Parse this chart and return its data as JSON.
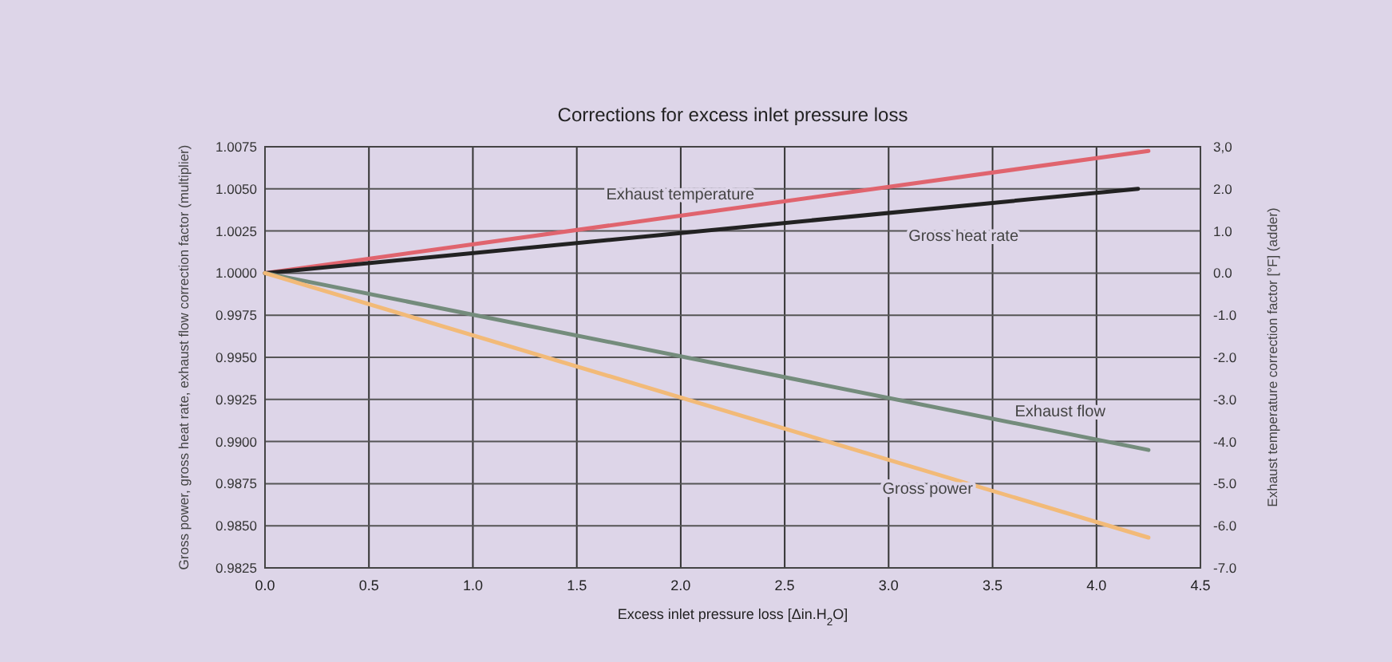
{
  "chart_data": {
    "type": "line",
    "title": "Corrections for excess inlet pressure loss",
    "xlabel": "Excess inlet pressure loss  [Δin.H$_{2}$O]",
    "ylabel": "Gross power, gross heat rate, exhaust flow correction factor (multiplier)",
    "y2label": "Exhaust temperature correction factor [°F] (adder)",
    "x": [
      0,
      4.25
    ],
    "series": [
      {
        "name": "Exhaust temperature",
        "color": "#e0646e",
        "values": [
          0,
          2.9
        ],
        "axis": "y2"
      },
      {
        "name": "Gross heat rate",
        "color": "#222222",
        "values": [
          1.0,
          1.005
        ],
        "x": [
          0,
          4.2
        ]
      },
      {
        "name": "Exhaust flow",
        "color": "#748c7c",
        "values": [
          1.0,
          0.9895
        ]
      },
      {
        "name": "Gross power",
        "color": "#f2ba78",
        "values": [
          1.0,
          0.9843
        ]
      }
    ],
    "xlim": [
      0,
      4.5
    ],
    "xticks": [
      {
        "value": 0,
        "label": "0.0"
      },
      {
        "value": 0.5,
        "label": "0.5"
      },
      {
        "value": 1,
        "label": "1.0"
      },
      {
        "value": 1.5,
        "label": "1.5"
      },
      {
        "value": 2,
        "label": "2.0"
      },
      {
        "value": 2.5,
        "label": "2.5"
      },
      {
        "value": 3,
        "label": "3.0"
      },
      {
        "value": 3.5,
        "label": "3.5"
      },
      {
        "value": 4,
        "label": "4.0"
      },
      {
        "value": 4.5,
        "label": "4.5"
      }
    ],
    "ylim": [
      0.9825,
      1.0075
    ],
    "yticks": [
      {
        "value": 0.9825,
        "label": "0.9825"
      },
      {
        "value": 0.985,
        "label": "0.9850"
      },
      {
        "value": 0.9875,
        "label": "0.9875"
      },
      {
        "value": 0.99,
        "label": "0.9900"
      },
      {
        "value": 0.9925,
        "label": "0.9925"
      },
      {
        "value": 0.995,
        "label": "0.9950"
      },
      {
        "value": 0.9975,
        "label": "0.9975"
      },
      {
        "value": 1,
        "label": "1.0000"
      },
      {
        "value": 1.0025,
        "label": "1.0025"
      },
      {
        "value": 1.005,
        "label": "1.0050"
      },
      {
        "value": 1.0075,
        "label": "1.0075"
      }
    ],
    "y2lim": [
      -7,
      3
    ],
    "y2ticks": [
      {
        "value": -7,
        "label": "-7.0"
      },
      {
        "value": -6,
        "label": "-6.0"
      },
      {
        "value": -5,
        "label": "-5.0"
      },
      {
        "value": -4,
        "label": "-4.0"
      },
      {
        "value": -3,
        "label": "-3.0"
      },
      {
        "value": -2,
        "label": "-2.0"
      },
      {
        "value": -1,
        "label": "-1.0"
      },
      {
        "value": 0,
        "label": "0.0"
      },
      {
        "value": 1,
        "label": "1.0"
      },
      {
        "value": 2,
        "label": "2.0"
      },
      {
        "value": 3,
        "label": "3,0"
      }
    ],
    "grid": true,
    "line_style": "solid"
  }
}
